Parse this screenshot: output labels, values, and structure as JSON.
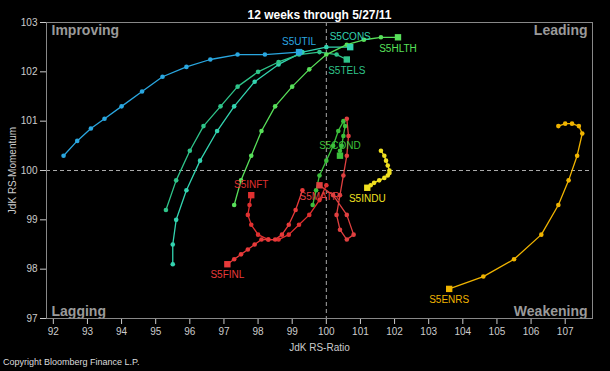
{
  "chart_data": {
    "type": "line",
    "title": "12 weeks through 5/27/11",
    "x_label": "JdK RS-Ratio",
    "y_label": "JdK RS-Momentum",
    "caption": "Copyright Bloomberg Finance L.P.",
    "quadrant_labels": {
      "top_left": "Improving",
      "top_right": "Leading",
      "bottom_left": "Lagging",
      "bottom_right": "Weakening"
    },
    "reference_lines": {
      "x": 100,
      "y": 100
    },
    "xlim": [
      91.8,
      107.8
    ],
    "xticks": [
      92,
      93,
      94,
      95,
      96,
      97,
      98,
      99,
      100,
      101,
      102,
      103,
      104,
      105,
      106,
      107
    ],
    "ylim": [
      97,
      103
    ],
    "yticks": [
      97,
      98,
      99,
      100,
      101,
      102,
      103
    ],
    "grid": false,
    "marker": "circle",
    "series": [
      {
        "name": "S5UTIL",
        "color": "#2aa7e0",
        "x": [
          92.3,
          92.7,
          93.1,
          93.5,
          94.0,
          94.6,
          95.2,
          95.9,
          96.6,
          97.4,
          98.2,
          99.2
        ],
        "y": [
          100.3,
          100.6,
          100.85,
          101.05,
          101.3,
          101.6,
          101.9,
          102.1,
          102.25,
          102.35,
          102.35,
          102.4
        ]
      },
      {
        "name": "S5CONS",
        "color": "#33d4b0",
        "x": [
          95.5,
          95.5,
          95.6,
          95.9,
          96.3,
          96.8,
          97.3,
          97.9,
          98.6,
          99.3,
          100.0,
          100.7
        ],
        "y": [
          98.1,
          98.5,
          99.0,
          99.6,
          100.2,
          100.8,
          101.3,
          101.8,
          102.15,
          102.4,
          102.5,
          102.5
        ]
      },
      {
        "name": "S5TELS",
        "color": "#2fc48a",
        "x": [
          95.3,
          95.6,
          96.0,
          96.4,
          96.9,
          97.4,
          98.0,
          98.6,
          99.2,
          99.8,
          100.3,
          100.6
        ],
        "y": [
          99.2,
          99.8,
          100.4,
          100.9,
          101.3,
          101.7,
          102.0,
          102.2,
          102.35,
          102.4,
          102.35,
          102.25
        ]
      },
      {
        "name": "S5HLTH",
        "color": "#58e05a",
        "x": [
          97.3,
          97.5,
          97.8,
          98.1,
          98.5,
          99.0,
          99.5,
          100.0,
          100.6,
          101.1,
          101.6,
          102.1
        ],
        "y": [
          99.3,
          99.8,
          100.3,
          100.8,
          101.3,
          101.7,
          102.05,
          102.35,
          102.55,
          102.65,
          102.7,
          102.7
        ]
      },
      {
        "name": "S5COND",
        "color": "#3cc03c",
        "x": [
          99.6,
          99.7,
          99.8,
          100.0,
          100.2,
          100.35,
          100.5,
          100.55,
          100.5,
          100.45,
          100.4,
          100.4
        ],
        "y": [
          99.3,
          99.6,
          99.9,
          100.2,
          100.5,
          100.8,
          101.0,
          100.9,
          100.7,
          100.5,
          100.4,
          100.3
        ]
      },
      {
        "name": "S5MATR",
        "color": "#e04040",
        "x": [
          100.6,
          100.65,
          100.6,
          100.5,
          100.4,
          100.3,
          100.4,
          100.6,
          100.8,
          100.6,
          100.2,
          99.8
        ],
        "y": [
          101.05,
          100.7,
          100.3,
          99.9,
          99.5,
          99.1,
          98.8,
          98.6,
          98.7,
          99.1,
          99.5,
          99.7
        ]
      },
      {
        "name": "S5INDU",
        "color": "#f0e020",
        "x": [
          101.6,
          101.7,
          101.75,
          101.8,
          101.85,
          101.85,
          101.8,
          101.7,
          101.55,
          101.4,
          101.3,
          101.2
        ],
        "y": [
          100.4,
          100.3,
          100.2,
          100.1,
          100.0,
          99.95,
          99.9,
          99.85,
          99.8,
          99.75,
          99.7,
          99.65
        ]
      },
      {
        "name": "S5INFT",
        "color": "#e03030",
        "x": [
          100.0,
          99.8,
          99.5,
          99.2,
          98.9,
          98.6,
          98.3,
          98.0,
          97.8,
          97.7,
          97.75,
          97.8
        ],
        "y": [
          99.7,
          99.4,
          99.1,
          98.9,
          98.7,
          98.6,
          98.6,
          98.7,
          98.9,
          99.1,
          99.3,
          99.5
        ]
      },
      {
        "name": "S5FINL",
        "color": "#e83a3a",
        "x": [
          99.3,
          99.1,
          98.9,
          98.7,
          98.5,
          98.3,
          98.1,
          97.9,
          97.7,
          97.5,
          97.3,
          97.1
        ],
        "y": [
          99.6,
          99.2,
          98.9,
          98.7,
          98.6,
          98.6,
          98.6,
          98.5,
          98.4,
          98.3,
          98.2,
          98.1
        ]
      },
      {
        "name": "S5ENRS",
        "color": "#f0b400",
        "x": [
          106.8,
          107.0,
          107.2,
          107.4,
          107.5,
          107.35,
          107.1,
          106.8,
          106.3,
          105.5,
          104.6,
          103.6
        ],
        "y": [
          100.9,
          100.95,
          100.95,
          100.9,
          100.75,
          100.3,
          99.8,
          99.3,
          98.7,
          98.2,
          97.85,
          97.6
        ]
      }
    ]
  }
}
